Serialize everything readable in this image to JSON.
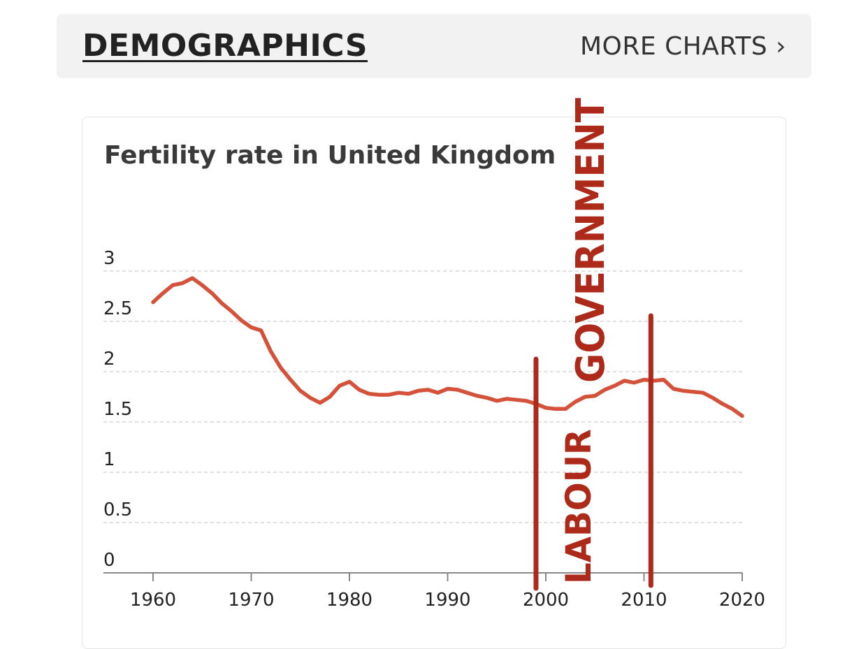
{
  "header": {
    "section_title": "DEMOGRAPHICS",
    "more_link": "MORE CHARTS ›"
  },
  "colors": {
    "line": "#d4513a",
    "annotation": "#ad2a1a",
    "grid": "#cccccc",
    "axis": "#888888"
  },
  "chart_data": {
    "type": "line",
    "title": "Fertility rate in United Kingdom",
    "xlabel": "",
    "ylabel": "",
    "xlim": [
      1955,
      2020
    ],
    "ylim": [
      0,
      3
    ],
    "x_ticks": [
      "1960",
      "1970",
      "1980",
      "1990",
      "2000",
      "2010",
      "2020"
    ],
    "y_ticks": [
      "0",
      "0.5",
      "1",
      "1.5",
      "2",
      "2.5",
      "3"
    ],
    "grid": true,
    "series": [
      {
        "name": "Fertility rate",
        "x": [
          1960,
          1961,
          1962,
          1963,
          1964,
          1965,
          1966,
          1967,
          1968,
          1969,
          1970,
          1971,
          1972,
          1973,
          1974,
          1975,
          1976,
          1977,
          1978,
          1979,
          1980,
          1981,
          1982,
          1983,
          1984,
          1985,
          1986,
          1987,
          1988,
          1989,
          1990,
          1991,
          1992,
          1993,
          1994,
          1995,
          1996,
          1997,
          1998,
          1999,
          2000,
          2001,
          2002,
          2003,
          2004,
          2005,
          2006,
          2007,
          2008,
          2009,
          2010,
          2011,
          2012,
          2013,
          2014,
          2015,
          2016,
          2017,
          2018,
          2019,
          2020
        ],
        "values": [
          2.69,
          2.78,
          2.86,
          2.88,
          2.93,
          2.86,
          2.78,
          2.68,
          2.6,
          2.51,
          2.44,
          2.41,
          2.2,
          2.04,
          1.92,
          1.81,
          1.74,
          1.69,
          1.75,
          1.86,
          1.9,
          1.82,
          1.78,
          1.77,
          1.77,
          1.79,
          1.78,
          1.81,
          1.82,
          1.79,
          1.83,
          1.82,
          1.79,
          1.76,
          1.74,
          1.71,
          1.73,
          1.72,
          1.71,
          1.68,
          1.64,
          1.63,
          1.63,
          1.7,
          1.75,
          1.76,
          1.82,
          1.86,
          1.91,
          1.89,
          1.92,
          1.91,
          1.92,
          1.83,
          1.81,
          1.8,
          1.79,
          1.74,
          1.68,
          1.63,
          1.56
        ]
      }
    ],
    "annotations": {
      "text_vertical_1": "LABOUR",
      "text_vertical_2": "GOVERNMENT",
      "markers_years": [
        1999.0,
        2010.7
      ]
    }
  }
}
